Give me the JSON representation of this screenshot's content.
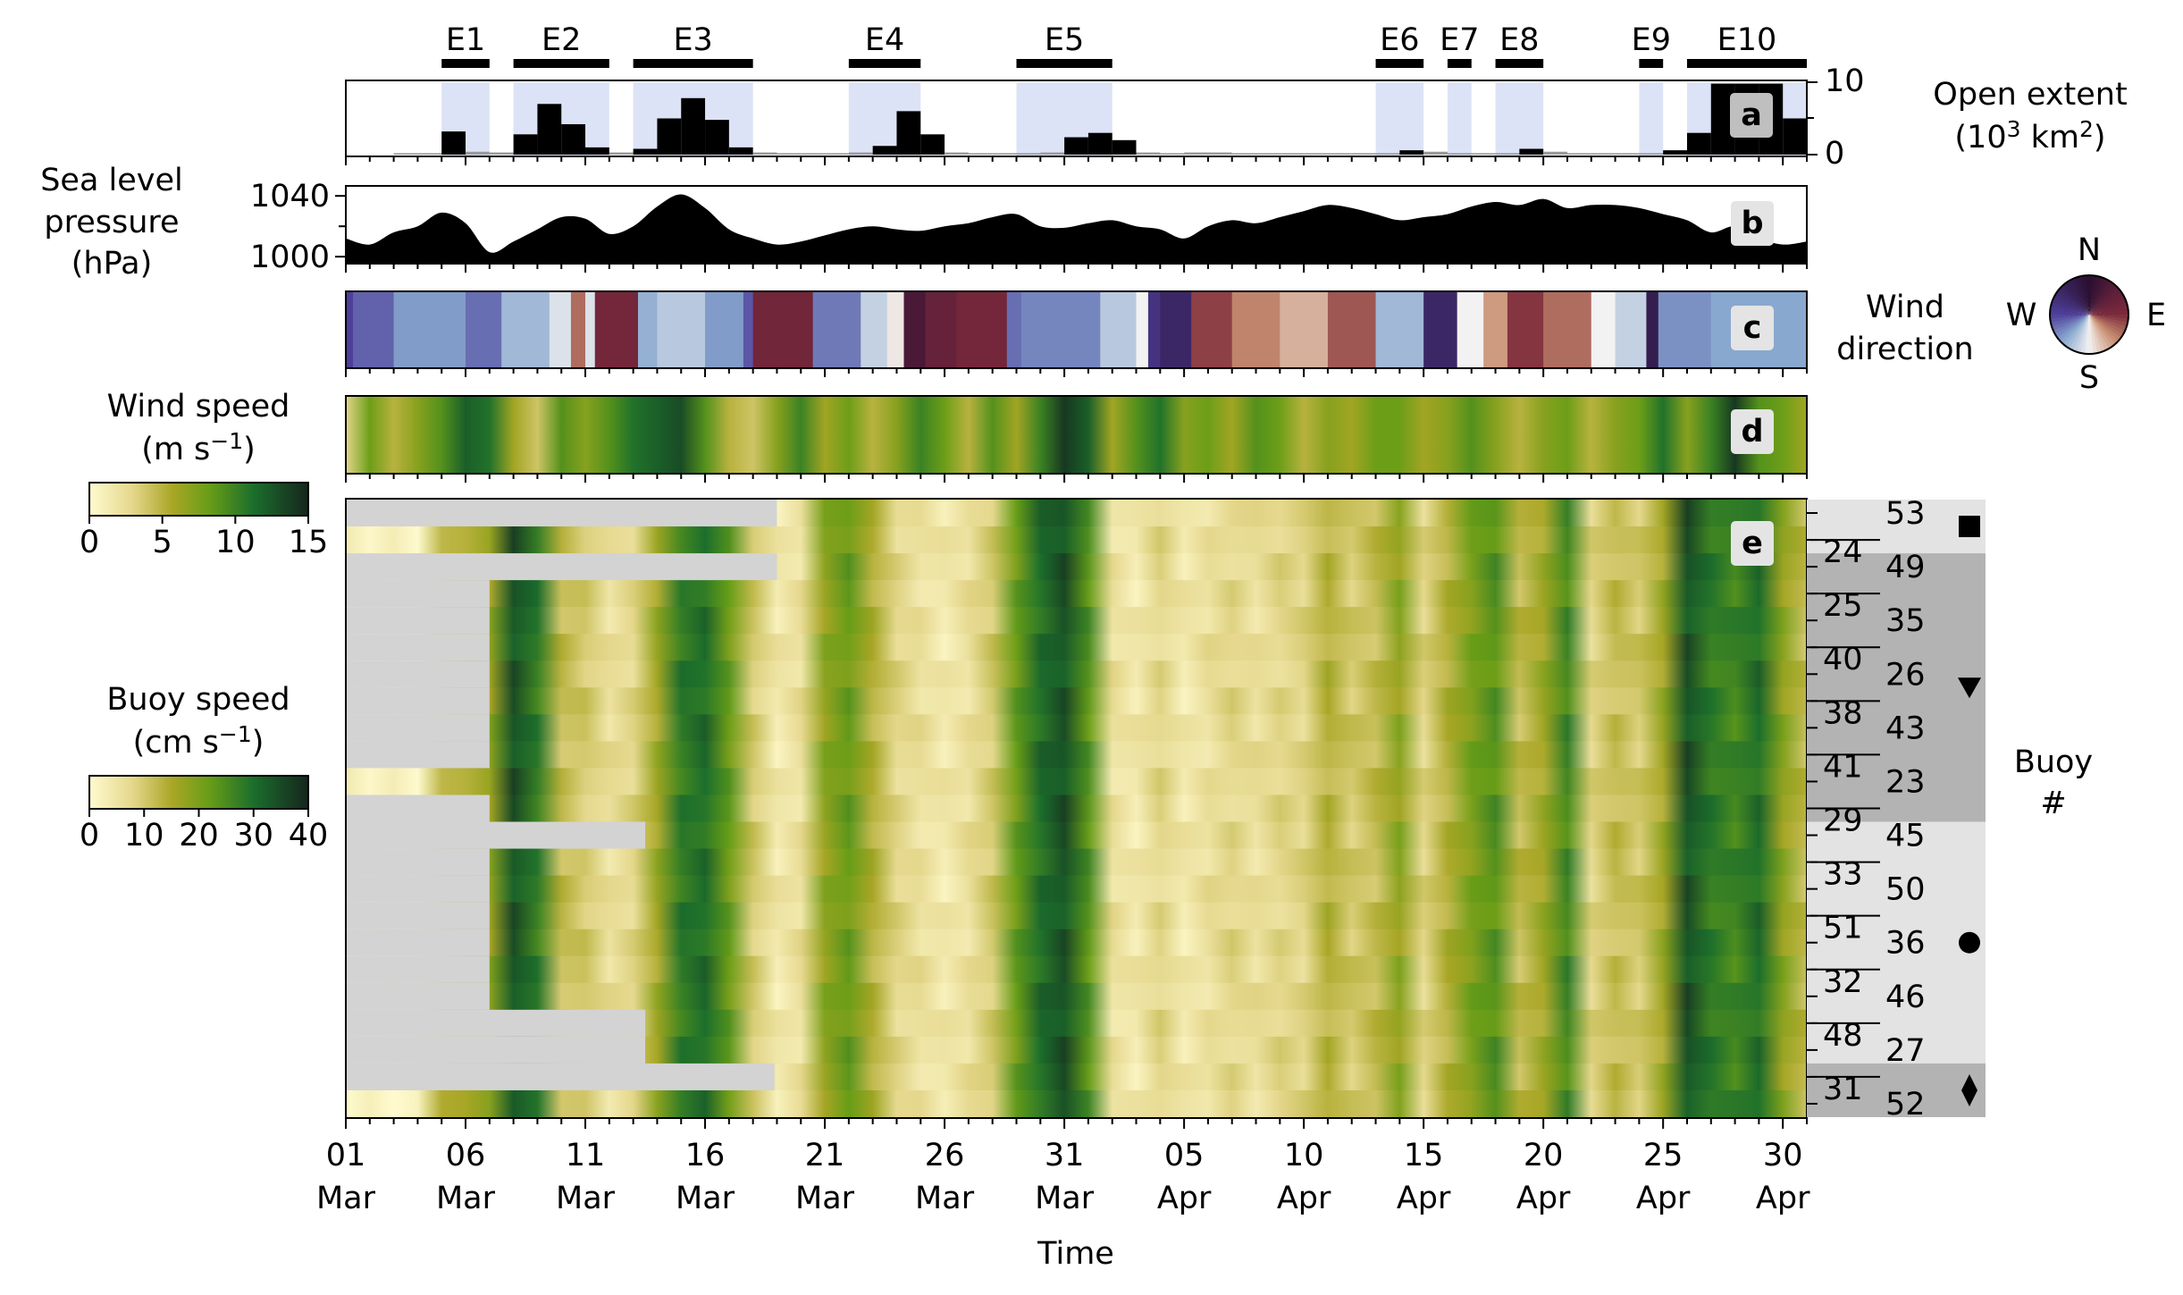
{
  "chart_data": [
    {
      "panel": "a",
      "type": "bar",
      "ylabel_line1": "Open extent",
      "ylabel_line2": "(10",
      "ylabel_sup1": "3",
      "ylabel_mid": " km",
      "ylabel_sup2": "2",
      "ylabel_end": ")",
      "ylim": [
        0,
        10
      ],
      "yticks": [
        "10",
        "0"
      ],
      "events": [
        {
          "label": "E1",
          "start": 5,
          "end": 7
        },
        {
          "label": "E2",
          "start": 8,
          "end": 12
        },
        {
          "label": "E3",
          "start": 13,
          "end": 18
        },
        {
          "label": "E4",
          "start": 22,
          "end": 25
        },
        {
          "label": "E5",
          "start": 29,
          "end": 33
        },
        {
          "label": "E6",
          "start": 44,
          "end": 46
        },
        {
          "label": "E7",
          "start": 47,
          "end": 48
        },
        {
          "label": "E8",
          "start": 49,
          "end": 51
        },
        {
          "label": "E9",
          "start": 55,
          "end": 56
        },
        {
          "label": "E10",
          "start": 57,
          "end": 62
        }
      ],
      "bar_days": [
        3,
        4,
        5,
        6,
        7,
        8,
        9,
        10,
        11,
        12,
        13,
        14,
        15,
        16,
        17,
        18,
        19,
        20,
        21,
        22,
        23,
        24,
        25,
        26,
        27,
        28,
        29,
        30,
        31,
        32,
        33,
        34,
        35,
        36,
        37,
        38,
        39,
        40,
        41,
        42,
        43,
        44,
        45,
        46,
        47,
        48,
        49,
        50,
        51,
        52,
        53,
        54,
        55,
        56,
        57,
        58,
        59,
        60,
        61
      ],
      "bar_values": [
        0.2,
        0.2,
        3.2,
        0.4,
        0.3,
        2.8,
        7.0,
        4.2,
        1.0,
        0.3,
        0.8,
        5.0,
        7.8,
        4.8,
        1.0,
        0.3,
        0.2,
        0.2,
        0.2,
        0.3,
        1.2,
        6.0,
        2.8,
        0.3,
        0.2,
        0.2,
        0.2,
        0.3,
        2.4,
        3.0,
        2.0,
        0.3,
        0.2,
        0.3,
        0.3,
        0.2,
        0.2,
        0.2,
        0.2,
        0.2,
        0.2,
        0.2,
        0.6,
        0.4,
        0.2,
        0.2,
        0.2,
        0.8,
        0.4,
        0.2,
        0.2,
        0.2,
        0.2,
        0.6,
        3.0,
        9.8,
        9.8,
        9.8,
        5.0
      ]
    },
    {
      "panel": "b",
      "type": "area",
      "ylabel": [
        "Sea level",
        "pressure",
        "(hPa)"
      ],
      "yticks": [
        "1040",
        "1000"
      ],
      "ylim": [
        996,
        1046
      ],
      "x": [
        1,
        2,
        3,
        4,
        5,
        6,
        7,
        8,
        9,
        10,
        11,
        12,
        13,
        14,
        15,
        16,
        17,
        18,
        19,
        20,
        21,
        22,
        23,
        24,
        25,
        26,
        27,
        28,
        29,
        30,
        31,
        32,
        33,
        34,
        35,
        36,
        37,
        38,
        39,
        40,
        41,
        42,
        43,
        44,
        45,
        46,
        47,
        48,
        49,
        50,
        51,
        52,
        53,
        54,
        55,
        56,
        57,
        58,
        59,
        60,
        61,
        62
      ],
      "values": [
        1012,
        1008,
        1016,
        1020,
        1029,
        1022,
        1003,
        1010,
        1018,
        1026,
        1025,
        1015,
        1020,
        1033,
        1041,
        1032,
        1018,
        1012,
        1008,
        1010,
        1014,
        1018,
        1020,
        1018,
        1017,
        1020,
        1022,
        1026,
        1028,
        1020,
        1019,
        1022,
        1024,
        1020,
        1018,
        1012,
        1020,
        1024,
        1022,
        1026,
        1030,
        1034,
        1032,
        1028,
        1024,
        1026,
        1028,
        1033,
        1036,
        1034,
        1038,
        1032,
        1034,
        1034,
        1032,
        1028,
        1024,
        1016,
        1020,
        1012,
        1008,
        1010
      ]
    },
    {
      "panel": "c",
      "type": "heatmap",
      "title_lines": [
        "Wind",
        "direction"
      ],
      "compass": {
        "n": "N",
        "e": "E",
        "s": "S",
        "w": "W"
      },
      "colors": {
        "N": "#2a0f30",
        "E": "#7c2a3a",
        "S": "#f3f2f2",
        "W": "#4e3f9a"
      },
      "segments": [
        {
          "start": 1,
          "end": 1.3,
          "dir": 270
        },
        {
          "start": 1.3,
          "end": 3,
          "dir": 255
        },
        {
          "start": 3,
          "end": 6,
          "dir": 230
        },
        {
          "start": 6,
          "end": 7.5,
          "dir": 250
        },
        {
          "start": 7.5,
          "end": 9.5,
          "dir": 215
        },
        {
          "start": 9.5,
          "end": 10.4,
          "dir": 190
        },
        {
          "start": 10.4,
          "end": 11,
          "dir": 120
        },
        {
          "start": 11,
          "end": 11.4,
          "dir": 190
        },
        {
          "start": 11.4,
          "end": 13.2,
          "dir": 80
        },
        {
          "start": 13.2,
          "end": 14,
          "dir": 220
        },
        {
          "start": 14,
          "end": 16,
          "dir": 205
        },
        {
          "start": 16,
          "end": 17.6,
          "dir": 230
        },
        {
          "start": 17.6,
          "end": 18,
          "dir": 260
        },
        {
          "start": 18,
          "end": 20.5,
          "dir": 75
        },
        {
          "start": 20.5,
          "end": 22.5,
          "dir": 245
        },
        {
          "start": 22.5,
          "end": 23.6,
          "dir": 200
        },
        {
          "start": 23.6,
          "end": 24.3,
          "dir": 175
        },
        {
          "start": 24.3,
          "end": 25.2,
          "dir": 30
        },
        {
          "start": 25.2,
          "end": 26.5,
          "dir": 60
        },
        {
          "start": 26.5,
          "end": 28.6,
          "dir": 80
        },
        {
          "start": 28.6,
          "end": 29.2,
          "dir": 250
        },
        {
          "start": 29.2,
          "end": 32.5,
          "dir": 240
        },
        {
          "start": 32.5,
          "end": 34,
          "dir": 205
        },
        {
          "start": 34,
          "end": 34.5,
          "dir": 180
        },
        {
          "start": 34.5,
          "end": 35.0,
          "dir": 290
        },
        {
          "start": 35.0,
          "end": 36.3,
          "dir": 310
        },
        {
          "start": 36.3,
          "end": 38,
          "dir": 100
        },
        {
          "start": 38,
          "end": 40,
          "dir": 130
        },
        {
          "start": 40,
          "end": 42,
          "dir": 150
        },
        {
          "start": 42,
          "end": 44,
          "dir": 110
        },
        {
          "start": 44,
          "end": 46,
          "dir": 215
        },
        {
          "start": 46,
          "end": 47.4,
          "dir": 310
        },
        {
          "start": 47.4,
          "end": 48.5,
          "dir": 180
        },
        {
          "start": 48.5,
          "end": 49.5,
          "dir": 140
        },
        {
          "start": 49.5,
          "end": 51,
          "dir": 95
        },
        {
          "start": 51,
          "end": 53,
          "dir": 120
        },
        {
          "start": 53,
          "end": 54,
          "dir": 180
        },
        {
          "start": 54,
          "end": 55.3,
          "dir": 200
        },
        {
          "start": 55.3,
          "end": 55.8,
          "dir": 330
        },
        {
          "start": 55.8,
          "end": 58,
          "dir": 235
        },
        {
          "start": 58,
          "end": 62,
          "dir": 225
        }
      ]
    },
    {
      "panel": "d",
      "type": "heatmap",
      "colorbar_label": "Wind speed",
      "colorbar_unit_pre": "(m s",
      "colorbar_unit_sup": "−1",
      "colorbar_unit_post": ")",
      "colorbar_ticks": [
        0,
        5,
        10,
        15
      ],
      "vmax": 15,
      "days": [
        1,
        2,
        3,
        4,
        5,
        6,
        7,
        8,
        9,
        10,
        11,
        12,
        13,
        14,
        15,
        16,
        17,
        18,
        19,
        20,
        21,
        22,
        23,
        24,
        25,
        26,
        27,
        28,
        29,
        30,
        31,
        32,
        33,
        34,
        35,
        36,
        37,
        38,
        39,
        40,
        41,
        42,
        43,
        44,
        45,
        46,
        47,
        48,
        49,
        50,
        51,
        52,
        53,
        54,
        55,
        56,
        57,
        58,
        59,
        60,
        61,
        62
      ],
      "values": [
        3,
        8,
        5,
        7,
        9,
        12,
        11,
        6,
        4,
        9,
        7,
        9,
        11,
        12,
        13,
        9,
        5,
        4,
        7,
        10,
        6,
        8,
        5,
        7,
        10,
        8,
        5,
        9,
        6,
        10,
        14,
        12,
        6,
        9,
        11,
        7,
        8,
        6,
        9,
        8,
        5,
        7,
        6,
        8,
        8,
        6,
        7,
        9,
        7,
        5,
        7,
        8,
        5,
        7,
        8,
        11,
        7,
        10,
        14,
        9,
        8,
        6
      ]
    },
    {
      "panel": "e",
      "type": "heatmap",
      "colorbar_label": "Buoy speed",
      "colorbar_unit_pre": "(cm s",
      "colorbar_unit_sup": "−1",
      "colorbar_unit_post": ")",
      "colorbar_ticks": [
        0,
        10,
        20,
        30,
        40
      ],
      "vmax": 40,
      "ylabel": [
        "Buoy",
        "#"
      ],
      "buoys": [
        "53",
        "24",
        "49",
        "25",
        "35",
        "40",
        "26",
        "38",
        "43",
        "41",
        "23",
        "29",
        "45",
        "33",
        "50",
        "51",
        "36",
        "32",
        "46",
        "48",
        "27",
        "31",
        "52"
      ],
      "start_days": [
        19,
        1,
        19,
        7,
        7,
        7,
        7,
        7,
        7,
        7,
        1,
        7,
        13.5,
        7,
        7,
        7,
        7,
        7,
        7,
        13.5,
        13.5,
        18.9,
        1
      ],
      "groups": [
        {
          "from": 0,
          "to": 1,
          "marker": "square"
        },
        {
          "from": 2,
          "to": 11,
          "marker": "triangle-down"
        },
        {
          "from": 12,
          "to": 20,
          "marker": "circle"
        },
        {
          "from": 21,
          "to": 22,
          "marker": "diamond"
        }
      ],
      "days": [
        1,
        2,
        3,
        4,
        5,
        6,
        7,
        8,
        9,
        10,
        11,
        12,
        13,
        14,
        15,
        16,
        17,
        18,
        19,
        20,
        21,
        22,
        23,
        24,
        25,
        26,
        27,
        28,
        29,
        30,
        31,
        32,
        33,
        34,
        35,
        36,
        37,
        38,
        39,
        40,
        41,
        42,
        43,
        44,
        45,
        46,
        47,
        48,
        49,
        50,
        51,
        52,
        53,
        54,
        55,
        56,
        57,
        58,
        59,
        60,
        61,
        62
      ],
      "values": [
        2,
        2,
        2,
        2,
        12,
        16,
        17,
        34,
        28,
        12,
        10,
        6,
        8,
        16,
        28,
        30,
        22,
        10,
        4,
        6,
        18,
        22,
        14,
        8,
        6,
        4,
        6,
        10,
        22,
        30,
        34,
        24,
        6,
        4,
        8,
        4,
        6,
        8,
        6,
        8,
        8,
        14,
        10,
        12,
        18,
        8,
        14,
        20,
        24,
        12,
        16,
        26,
        8,
        12,
        10,
        16,
        34,
        28,
        26,
        30,
        18,
        12
      ]
    }
  ],
  "x_axis": {
    "title": "Time",
    "tick_days": [
      1,
      6,
      11,
      16,
      21,
      26,
      31,
      36,
      41,
      46,
      51,
      56,
      61
    ],
    "tick_day": [
      "01",
      "06",
      "11",
      "16",
      "21",
      "26",
      "31",
      "05",
      "10",
      "15",
      "20",
      "25",
      "30"
    ],
    "tick_month": [
      "Mar",
      "Mar",
      "Mar",
      "Mar",
      "Mar",
      "Mar",
      "Mar",
      "Apr",
      "Apr",
      "Apr",
      "Apr",
      "Apr",
      "Apr"
    ],
    "xlim": [
      1,
      62
    ]
  },
  "panel_labels": [
    "a",
    "b",
    "c",
    "d",
    "e"
  ],
  "colors": {
    "event_shade": "#dde3f6",
    "missing": "#d3d3d3",
    "group_dark": "#b3b3b3",
    "group_light": "#e3e3e3",
    "label_box": "#e4e4e4"
  }
}
